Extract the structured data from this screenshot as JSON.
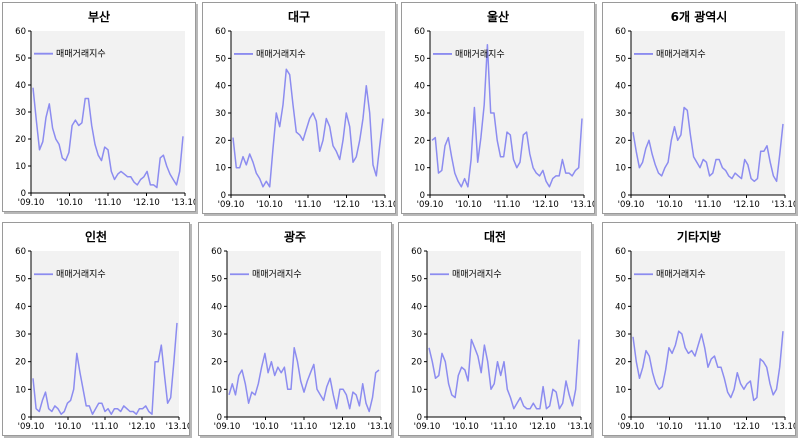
{
  "style": {
    "line_color": "#8c8cf0",
    "plot_bg": "#f2f2f2",
    "axis_color": "#000000"
  },
  "chart_data": [
    {
      "type": "line",
      "title": "부산",
      "legend": "매매거래지수",
      "ylim": [
        0,
        60
      ],
      "yticks": [
        "0",
        "10",
        "20",
        "30",
        "40",
        "50",
        "60"
      ],
      "xticks": [
        "'09.10",
        "'10.10",
        "'11.10",
        "'12.10",
        "'13.10"
      ],
      "series": [
        {
          "name": "매매거래지수",
          "values": [
            39,
            27,
            16,
            19,
            28,
            33,
            24,
            20,
            18,
            13,
            12,
            15,
            25,
            27,
            25,
            26,
            35,
            35,
            25,
            18,
            14,
            12,
            17,
            16,
            8,
            5,
            7,
            8,
            7,
            6,
            6,
            4,
            3,
            5,
            6,
            8,
            3,
            3,
            2,
            13,
            14,
            10,
            7,
            5,
            3,
            8,
            21
          ]
        }
      ]
    },
    {
      "type": "line",
      "title": "대구",
      "legend": "매매거래지수",
      "ylim": [
        0,
        60
      ],
      "yticks": [
        "0",
        "10",
        "20",
        "30",
        "40",
        "50",
        "60"
      ],
      "xticks": [
        "'09.10",
        "'10.10",
        "'11.10",
        "'12.10",
        "'13.10"
      ],
      "series": [
        {
          "name": "매매거래지수",
          "values": [
            21,
            10,
            10,
            14,
            11,
            15,
            12,
            8,
            6,
            3,
            5,
            3,
            17,
            30,
            25,
            33,
            46,
            44,
            33,
            23,
            22,
            20,
            24,
            28,
            30,
            27,
            16,
            20,
            28,
            25,
            18,
            16,
            13,
            20,
            30,
            25,
            12,
            14,
            20,
            28,
            40,
            30,
            11,
            7,
            18,
            28
          ]
        }
      ]
    },
    {
      "type": "line",
      "title": "울산",
      "legend": "매매거래지수",
      "ylim": [
        0,
        60
      ],
      "yticks": [
        "0",
        "10",
        "20",
        "30",
        "40",
        "50",
        "60"
      ],
      "xticks": [
        "'09.10",
        "'10.10",
        "'11.10",
        "'12.10",
        "'13.10"
      ],
      "series": [
        {
          "name": "매매거래지수",
          "values": [
            20,
            21,
            8,
            9,
            18,
            21,
            14,
            8,
            5,
            3,
            6,
            3,
            13,
            32,
            12,
            21,
            33,
            55,
            30,
            30,
            20,
            14,
            14,
            23,
            22,
            13,
            10,
            12,
            22,
            23,
            15,
            10,
            8,
            7,
            9,
            5,
            3,
            6,
            7,
            7,
            13,
            8,
            8,
            7,
            9,
            10,
            28
          ]
        }
      ]
    },
    {
      "type": "line",
      "title": "6개 광역시",
      "legend": "매매거래지수",
      "ylim": [
        0,
        60
      ],
      "yticks": [
        "0",
        "10",
        "20",
        "30",
        "40",
        "50",
        "60"
      ],
      "xticks": [
        "'09.10",
        "'10.10",
        "'11.10",
        "'12.10",
        "'13.10"
      ],
      "series": [
        {
          "name": "매매거래지수",
          "values": [
            23,
            16,
            10,
            12,
            17,
            20,
            15,
            11,
            8,
            7,
            10,
            12,
            20,
            25,
            20,
            22,
            32,
            31,
            22,
            14,
            12,
            10,
            13,
            12,
            7,
            8,
            13,
            13,
            10,
            9,
            7,
            6,
            8,
            7,
            6,
            13,
            11,
            6,
            5,
            6,
            16,
            16,
            18,
            12,
            7,
            5,
            15,
            26
          ]
        }
      ]
    },
    {
      "type": "line",
      "title": "인천",
      "legend": "매매거래지수",
      "ylim": [
        0,
        60
      ],
      "yticks": [
        "0",
        "10",
        "20",
        "30",
        "40",
        "50",
        "60"
      ],
      "xticks": [
        "'09.10",
        "'10.10",
        "'11.10",
        "'12.10",
        "'13.10"
      ],
      "series": [
        {
          "name": "매매거래지수",
          "values": [
            14,
            3,
            2,
            6,
            9,
            3,
            2,
            4,
            3,
            1,
            2,
            5,
            6,
            10,
            23,
            16,
            10,
            4,
            4,
            1,
            3,
            5,
            5,
            2,
            3,
            1,
            3,
            3,
            2,
            4,
            3,
            2,
            2,
            1,
            3,
            3,
            4,
            2,
            1,
            20,
            20,
            26,
            15,
            5,
            7,
            20,
            34
          ]
        }
      ]
    },
    {
      "type": "line",
      "title": "광주",
      "legend": "매매거래지수",
      "ylim": [
        0,
        60
      ],
      "yticks": [
        "0",
        "10",
        "20",
        "30",
        "40",
        "50",
        "60"
      ],
      "xticks": [
        "'09.10",
        "'10.10",
        "'11.10",
        "'12.10",
        "'13.10"
      ],
      "series": [
        {
          "name": "매매거래지수",
          "values": [
            8,
            12,
            8,
            15,
            17,
            12,
            5,
            9,
            8,
            12,
            18,
            23,
            16,
            20,
            15,
            18,
            16,
            18,
            10,
            10,
            25,
            20,
            13,
            9,
            13,
            16,
            19,
            10,
            8,
            6,
            11,
            14,
            8,
            3,
            10,
            10,
            8,
            3,
            9,
            8,
            4,
            12,
            5,
            2,
            7,
            16,
            17
          ]
        }
      ]
    },
    {
      "type": "line",
      "title": "대전",
      "legend": "매매거래지수",
      "ylim": [
        0,
        60
      ],
      "yticks": [
        "0",
        "10",
        "20",
        "30",
        "40",
        "50",
        "60"
      ],
      "xticks": [
        "'09.10",
        "'10.10",
        "'11.10",
        "'12.10",
        "'13.10"
      ],
      "series": [
        {
          "name": "매매거래지수",
          "values": [
            25,
            20,
            14,
            15,
            23,
            20,
            12,
            8,
            7,
            15,
            18,
            17,
            13,
            28,
            25,
            22,
            16,
            26,
            20,
            10,
            12,
            20,
            15,
            20,
            10,
            7,
            3,
            5,
            7,
            4,
            3,
            3,
            5,
            3,
            3,
            11,
            3,
            4,
            10,
            9,
            3,
            5,
            13,
            8,
            4,
            10,
            28
          ]
        }
      ]
    },
    {
      "type": "line",
      "title": "기타지방",
      "legend": "매매거래지수",
      "ylim": [
        0,
        60
      ],
      "yticks": [
        "0",
        "10",
        "20",
        "30",
        "40",
        "50",
        "60"
      ],
      "xticks": [
        "'09.10",
        "'10.10",
        "'11.10",
        "'12.10",
        "'13.10"
      ],
      "series": [
        {
          "name": "매매거래지수",
          "values": [
            29,
            20,
            14,
            18,
            24,
            22,
            16,
            12,
            10,
            11,
            17,
            25,
            23,
            26,
            31,
            30,
            25,
            23,
            24,
            22,
            26,
            30,
            25,
            18,
            21,
            22,
            18,
            18,
            14,
            9,
            7,
            10,
            16,
            12,
            10,
            12,
            13,
            6,
            7,
            21,
            20,
            18,
            12,
            8,
            10,
            18,
            31
          ]
        }
      ]
    }
  ]
}
